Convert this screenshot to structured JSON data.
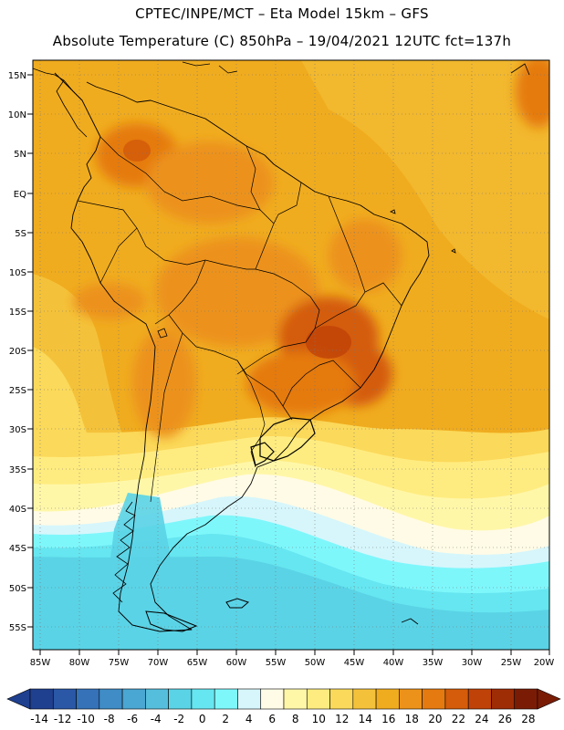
{
  "header": {
    "line1": "CPTEC/INPE/MCT –  Eta Model 15km – GFS",
    "line2": "Absolute Temperature (C) 850hPa – 19/04/2021 12UTC fct=137h"
  },
  "map": {
    "lat_labels": [
      "15N",
      "10N",
      "5N",
      "EQ",
      "5S",
      "10S",
      "15S",
      "20S",
      "25S",
      "30S",
      "35S",
      "40S",
      "45S",
      "50S",
      "55S"
    ],
    "lon_labels": [
      "85W",
      "80W",
      "75W",
      "70W",
      "65W",
      "60W",
      "55W",
      "50W",
      "45W",
      "40W",
      "35W",
      "30W",
      "25W",
      "20W"
    ]
  },
  "legend": {
    "labels": [
      "-14",
      "-12",
      "-10",
      "-8",
      "-6",
      "-4",
      "-2",
      "0",
      "2",
      "4",
      "6",
      "8",
      "10",
      "12",
      "14",
      "16",
      "18",
      "20",
      "22",
      "24",
      "26",
      "28"
    ],
    "colors": [
      "#1f3f8f",
      "#2a57a6",
      "#3572b8",
      "#3f8cc6",
      "#4aa6d2",
      "#55bedc",
      "#5ad3e6",
      "#66e6f0",
      "#7ef7fb",
      "#d6f6fb",
      "#fffbe6",
      "#fff7a8",
      "#ffec80",
      "#fbd95a",
      "#f4c23a",
      "#f0ac1f",
      "#ec921a",
      "#e57a10",
      "#d45c0a",
      "#bf4208",
      "#9e2c05",
      "#7a1c05"
    ]
  }
}
